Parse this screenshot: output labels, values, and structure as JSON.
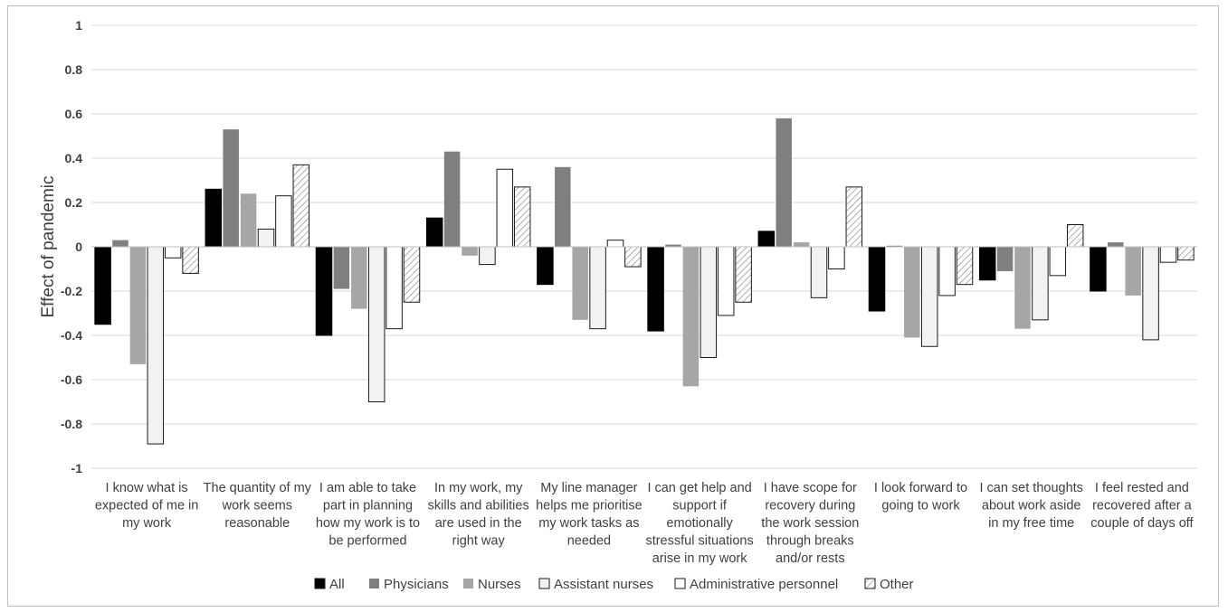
{
  "chart_data": {
    "type": "bar",
    "ylabel": "Effect of pandemic",
    "ylim": [
      -1,
      1
    ],
    "yticks": [
      1,
      0.8,
      0.6,
      0.4,
      0.2,
      0,
      -0.2,
      -0.4,
      -0.6,
      -0.8,
      -1
    ],
    "ytick_labels": [
      "1",
      "0.8",
      "0.6",
      "0.4",
      "0.2",
      "0",
      "-0.2",
      "-0.4",
      "-0.6",
      "-0.8",
      "-1"
    ],
    "grid": true,
    "legend_position": "bottom",
    "categories": [
      [
        "I know what is",
        "expected of me in",
        "my work"
      ],
      [
        "The quantity of my",
        "work seems",
        "reasonable"
      ],
      [
        "I am able to take",
        "part in planning",
        "how my work is to",
        "be performed"
      ],
      [
        "In my work, my",
        "skills and abilities",
        "are used in the",
        "right way"
      ],
      [
        "My line manager",
        "helps me prioritise",
        "my work tasks as",
        "needed"
      ],
      [
        "I can get help and",
        "support if",
        "emotionally",
        "stressful situations",
        "arise in my work"
      ],
      [
        "I have scope for",
        "recovery during",
        "the work session",
        "through breaks",
        "and/or rests"
      ],
      [
        "I look forward to",
        "going to work"
      ],
      [
        "I can set thoughts",
        "about work aside",
        "in my free time"
      ],
      [
        "I feel rested and",
        "recovered after a",
        "couple of days off"
      ]
    ],
    "series": [
      {
        "name": "All",
        "fill": "#000000",
        "values": [
          -0.35,
          0.26,
          -0.4,
          0.13,
          -0.17,
          -0.38,
          0.07,
          -0.29,
          -0.15,
          -0.2
        ]
      },
      {
        "name": "Physicians",
        "fill": "#7f7f7f",
        "values": [
          0.03,
          0.53,
          -0.19,
          0.43,
          0.36,
          0.01,
          0.58,
          0.005,
          -0.11,
          0.02
        ]
      },
      {
        "name": "Nurses",
        "fill": "#a6a6a6",
        "values": [
          -0.53,
          0.24,
          -0.28,
          -0.04,
          -0.33,
          -0.63,
          0.02,
          -0.41,
          -0.37,
          -0.22
        ]
      },
      {
        "name": "Assistant nurses",
        "fill": "#f2f2f2",
        "values": [
          -0.89,
          0.08,
          -0.7,
          -0.08,
          -0.37,
          -0.5,
          -0.23,
          -0.45,
          -0.33,
          -0.42
        ]
      },
      {
        "name": "Administrative personnel",
        "fill": "#ffffff",
        "values": [
          -0.05,
          0.23,
          -0.37,
          0.35,
          0.03,
          -0.31,
          -0.1,
          -0.22,
          -0.13,
          -0.07
        ]
      },
      {
        "name": "Other",
        "fill": "hatch",
        "values": [
          -0.12,
          0.37,
          -0.25,
          0.27,
          -0.09,
          -0.25,
          0.27,
          -0.17,
          0.1,
          -0.06
        ]
      }
    ]
  }
}
